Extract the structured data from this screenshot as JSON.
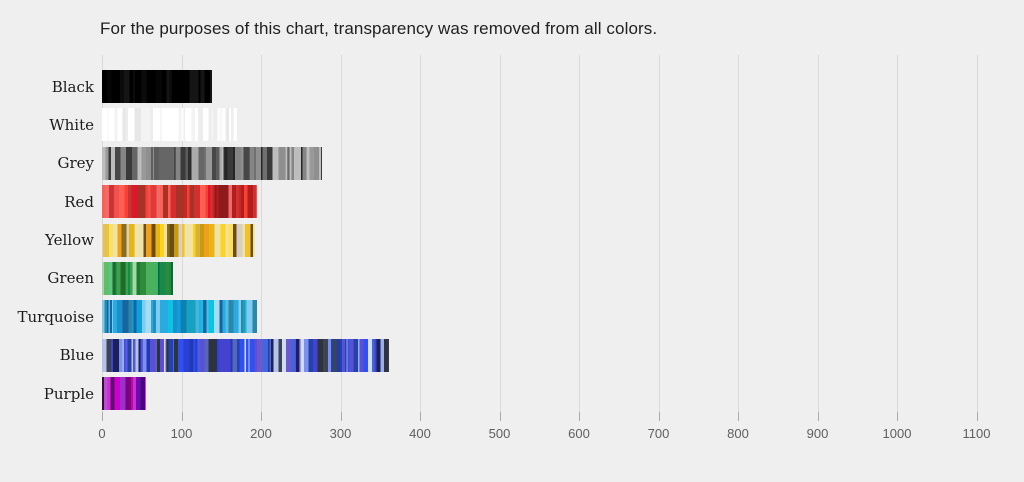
{
  "title": "For the purposes of this chart, transparency was removed from all colors.",
  "chart_data": {
    "type": "bar",
    "orientation": "horizontal",
    "categories": [
      "Black",
      "White",
      "Grey",
      "Red",
      "Yellow",
      "Green",
      "Turquoise",
      "Blue",
      "Purple"
    ],
    "values": [
      138,
      170,
      277,
      195,
      192,
      89,
      195,
      361,
      55
    ],
    "title": "For the purposes of this chart, transparency was removed from all colors.",
    "xlabel": "",
    "ylabel": "",
    "xlim": [
      0,
      1100
    ],
    "x_ticks": [
      0,
      100,
      200,
      300,
      400,
      500,
      600,
      700,
      800,
      900,
      1000,
      1100
    ],
    "grid": "vertical-gridlines",
    "legend": "none",
    "bar_style": "each bar is built of many thin vertical stripes of individual shades of its hue",
    "stripe_palettes": {
      "Black": [
        "#000000",
        "#0b0b0b",
        "#000000",
        "#151515",
        "#000000",
        "#060606"
      ],
      "White": [
        "#ffffff",
        "#ffffff",
        "#f9f9f9",
        "#ffffff",
        "#ededed",
        "#ffffff",
        "#f3f3f3",
        "#e7e7e7"
      ],
      "Grey": [
        "#2e2e2e",
        "#474747",
        "#5c5c5c",
        "#707070",
        "#858585",
        "#999999",
        "#ababab",
        "#bdbdbd",
        "#3a3a3a",
        "#666666",
        "#8f8f8f",
        "#262626"
      ],
      "Red": [
        "#c62828",
        "#e53935",
        "#b71c1c",
        "#ef5350",
        "#d32f2f",
        "#a93226",
        "#f44336",
        "#e8112d",
        "#ff5f52",
        "#8e1b1b",
        "#f06a6a",
        "#cd3333"
      ],
      "Yellow": [
        "#f2c12e",
        "#ffd21e",
        "#e8b517",
        "#f5e216",
        "#f0a01e",
        "#d9b23a",
        "#c79a10",
        "#8a6d1a",
        "#6b4e16",
        "#efe3a8",
        "#d9cfc0",
        "#ffdf5e",
        "#e6c34a"
      ],
      "Green": [
        "#1e7a2e",
        "#2e8b3a",
        "#3da14c",
        "#4cb05c",
        "#66bb6a",
        "#2f9e5f",
        "#178a4c",
        "#0f6b2f",
        "#57c785",
        "#a0d8a8",
        "#3cb371",
        "#22692a"
      ],
      "Turquoise": [
        "#29abe2",
        "#0fa0dc",
        "#1b8fc9",
        "#2e86ab",
        "#55bde8",
        "#0d7fb5",
        "#45b3dd",
        "#7fcdee",
        "#17a2b8",
        "#0bc3e3",
        "#a6dcf2",
        "#1565a0",
        "#36a6c9"
      ],
      "Blue": [
        "#2a3fd4",
        "#1f3bb3",
        "#3050f0",
        "#4343cf",
        "#5a4fd6",
        "#6a5acd",
        "#2244aa",
        "#4466dd",
        "#3d4451",
        "#2e3340",
        "#1a2357",
        "#9aaee8",
        "#b4c2ec",
        "#d2dcf4",
        "#5566bb",
        "#7d8ff0"
      ],
      "Purple": [
        "#cc00cc",
        "#d628d6",
        "#a613a6",
        "#800080",
        "#9932cc",
        "#6a0dad",
        "#4b0082",
        "#3a0a3a",
        "#b84fd0",
        "#5d1070"
      ]
    }
  },
  "colors": {
    "background": "#efefef",
    "gridline": "#d9d9d9",
    "tick_mark": "#ababab",
    "tick_label": "#5f5f5f",
    "category_label": "#1c1c1c",
    "title_text": "#212121"
  }
}
